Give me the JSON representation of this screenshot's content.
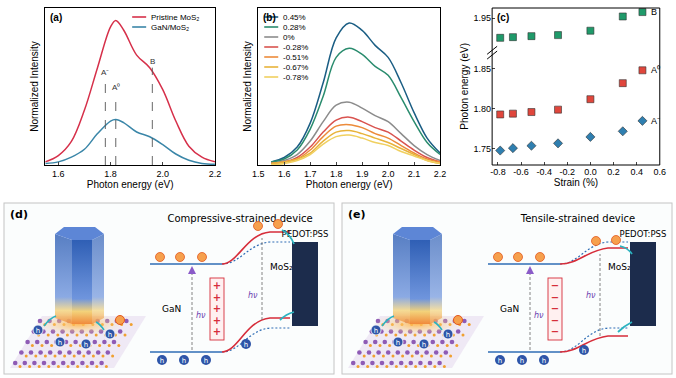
{
  "chart_data": [
    {
      "type": "line",
      "title": "(a)",
      "xlabel": "Photon energy (eV)",
      "ylabel": "Normalized Intensity",
      "x": [
        1.55,
        1.6,
        1.65,
        1.7,
        1.75,
        1.8,
        1.82,
        1.85,
        1.9,
        1.95,
        2.0,
        2.05,
        2.1,
        2.15,
        2.2
      ],
      "series": [
        {
          "name": "Pristine MoS₂",
          "color": "#d6304a",
          "values": [
            0.02,
            0.06,
            0.15,
            0.35,
            0.62,
            0.88,
            0.92,
            0.86,
            0.7,
            0.62,
            0.48,
            0.28,
            0.12,
            0.05,
            0.02
          ]
        },
        {
          "name": "GaN/MoS₂",
          "color": "#3a86a8",
          "values": [
            0.01,
            0.02,
            0.05,
            0.1,
            0.2,
            0.28,
            0.29,
            0.27,
            0.21,
            0.18,
            0.13,
            0.07,
            0.03,
            0.01,
            0.005
          ]
        }
      ],
      "peaks": [
        {
          "label": "A⁻",
          "x": 1.78,
          "y": 0.55
        },
        {
          "label": "A⁰",
          "x": 1.82,
          "y": 0.45
        },
        {
          "label": "B",
          "x": 1.96,
          "y": 0.62
        }
      ],
      "xlim": [
        1.55,
        2.2
      ],
      "xticks": [
        1.6,
        1.8,
        {
          "value": 2,
          "label": "2.0"
        },
        2.2
      ],
      "ylim": [
        0,
        1
      ],
      "tick_labels": "x",
      "legend": "top right",
      "grid": false
    },
    {
      "type": "line",
      "title": "(b)",
      "xlabel": "Photon energy (eV)",
      "ylabel": "Normalized Intensity",
      "x": [
        1.55,
        1.6,
        1.65,
        1.7,
        1.75,
        1.8,
        1.85,
        1.9,
        1.95,
        2.0,
        2.05,
        2.1,
        2.15,
        2.2
      ],
      "series": [
        {
          "name": "0.45%",
          "color": "#1b5e84",
          "values": [
            0.02,
            0.05,
            0.12,
            0.28,
            0.55,
            0.85,
            0.95,
            0.9,
            0.8,
            0.72,
            0.55,
            0.35,
            0.18,
            0.08
          ]
        },
        {
          "name": "0.28%",
          "color": "#2a8c6e",
          "values": [
            0.02,
            0.04,
            0.1,
            0.24,
            0.46,
            0.72,
            0.78,
            0.74,
            0.66,
            0.6,
            0.45,
            0.29,
            0.15,
            0.07
          ]
        },
        {
          "name": "0%",
          "color": "#8c8c8c",
          "values": [
            0.01,
            0.03,
            0.07,
            0.16,
            0.29,
            0.4,
            0.42,
            0.38,
            0.33,
            0.29,
            0.21,
            0.13,
            0.07,
            0.03
          ]
        },
        {
          "name": "-0.28%",
          "color": "#d9534f",
          "values": [
            0.01,
            0.02,
            0.05,
            0.12,
            0.22,
            0.3,
            0.32,
            0.29,
            0.25,
            0.22,
            0.16,
            0.1,
            0.05,
            0.02
          ]
        },
        {
          "name": "-0.51%",
          "color": "#ec8b3a",
          "values": [
            0.01,
            0.02,
            0.04,
            0.1,
            0.19,
            0.26,
            0.27,
            0.25,
            0.21,
            0.18,
            0.13,
            0.08,
            0.04,
            0.02
          ]
        },
        {
          "name": "-0.67%",
          "color": "#e8b33a",
          "values": [
            0.01,
            0.02,
            0.04,
            0.08,
            0.16,
            0.22,
            0.23,
            0.21,
            0.18,
            0.15,
            0.11,
            0.07,
            0.03,
            0.01
          ]
        },
        {
          "name": "-0.78%",
          "color": "#f0d060",
          "values": [
            0.0,
            0.01,
            0.03,
            0.07,
            0.14,
            0.19,
            0.2,
            0.18,
            0.15,
            0.13,
            0.09,
            0.06,
            0.03,
            0.01
          ]
        }
      ],
      "xlim": [
        1.5,
        2.2
      ],
      "xticks": [
        1.5,
        1.6,
        1.7,
        1.8,
        1.9,
        {
          "value": 2,
          "label": "2.0"
        },
        2.1,
        2.2
      ],
      "ylim": [
        0,
        1.05
      ],
      "tick_labels": "x",
      "legend": "top left",
      "grid": false
    },
    {
      "type": "scatter",
      "title": "(c)",
      "xlabel": "Strain (%)",
      "ylabel": "Photon energy (eV)",
      "x": [
        -0.78,
        -0.67,
        -0.51,
        -0.28,
        0,
        0.28,
        0.45
      ],
      "series": [
        {
          "name": "B",
          "color": "#1f9a6a",
          "marker": "square",
          "axis": "y2",
          "values": [
            1.892,
            1.894,
            1.897,
            1.9,
            1.913,
            1.955,
            1.968
          ]
        },
        {
          "name": "A⁰",
          "color": "#e0463c",
          "marker": "square",
          "values": [
            1.793,
            1.794,
            1.796,
            1.799,
            1.812,
            1.832,
            1.848
          ]
        },
        {
          "name": "A⁻",
          "color": "#2f7fb0",
          "marker": "diamond",
          "values": [
            1.748,
            1.751,
            1.754,
            1.757,
            1.765,
            1.772,
            1.785
          ]
        }
      ],
      "xlim": [
        -0.85,
        0.6
      ],
      "xticks": [
        -0.8,
        -0.6,
        -0.4,
        -0.2,
        {
          "value": 0,
          "label": "0.0"
        },
        0.2,
        0.4,
        0.6
      ],
      "ylim": [
        1.73,
        1.865
      ],
      "yticks": [
        1.75,
        {
          "value": 1.8,
          "label": "1.80"
        },
        1.85
      ],
      "y2lim": [
        1.86,
        1.98
      ],
      "y2ticks": [
        1.95
      ],
      "grid": false
    }
  ],
  "diagrams": [
    {
      "label": "(d)",
      "title": "Compressive-strained device",
      "interface_charge": "+",
      "texts": {
        "contact": "PEDOT:PSS",
        "layer": "MoS₂",
        "substrate": "GaN",
        "photon": "hν",
        "hole": "h"
      }
    },
    {
      "label": "(e)",
      "title": "Tensile-strained device",
      "interface_charge": "−",
      "texts": {
        "contact": "PEDOT:PSS",
        "layer": "MoS₂",
        "substrate": "GaN",
        "photon": "hν",
        "hole": "h"
      }
    }
  ]
}
